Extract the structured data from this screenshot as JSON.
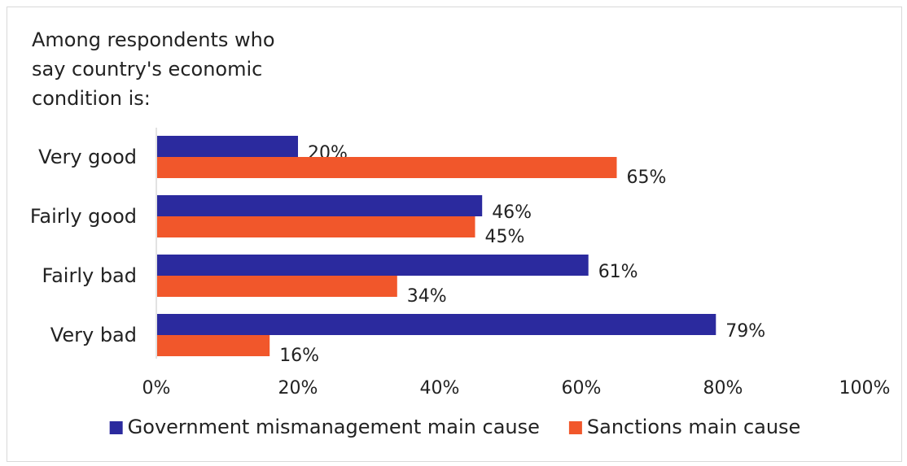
{
  "chart_data": {
    "type": "bar",
    "orientation": "horizontal",
    "subtitle_lines": [
      "Among respondents who",
      "say country's economic",
      "condition is:"
    ],
    "categories": [
      "Very good",
      "Fairly good",
      "Fairly bad",
      "Very bad"
    ],
    "series": [
      {
        "name": "Government mismanagement main cause",
        "color": "#2b2a9e",
        "values": [
          20,
          46,
          61,
          79
        ],
        "labels": [
          "20%",
          "46%",
          "61%",
          "79%"
        ]
      },
      {
        "name": "Sanctions main cause",
        "color": "#f1572b",
        "values": [
          65,
          45,
          34,
          16
        ],
        "labels": [
          "65%",
          "45%",
          "34%",
          "16%"
        ]
      }
    ],
    "xlim": [
      0,
      100
    ],
    "x_ticks": [
      0,
      20,
      40,
      60,
      80,
      100
    ],
    "x_tick_labels": [
      "0%",
      "20%",
      "40%",
      "60%",
      "80%",
      "100%"
    ],
    "grid": false,
    "legend_position": "bottom"
  }
}
